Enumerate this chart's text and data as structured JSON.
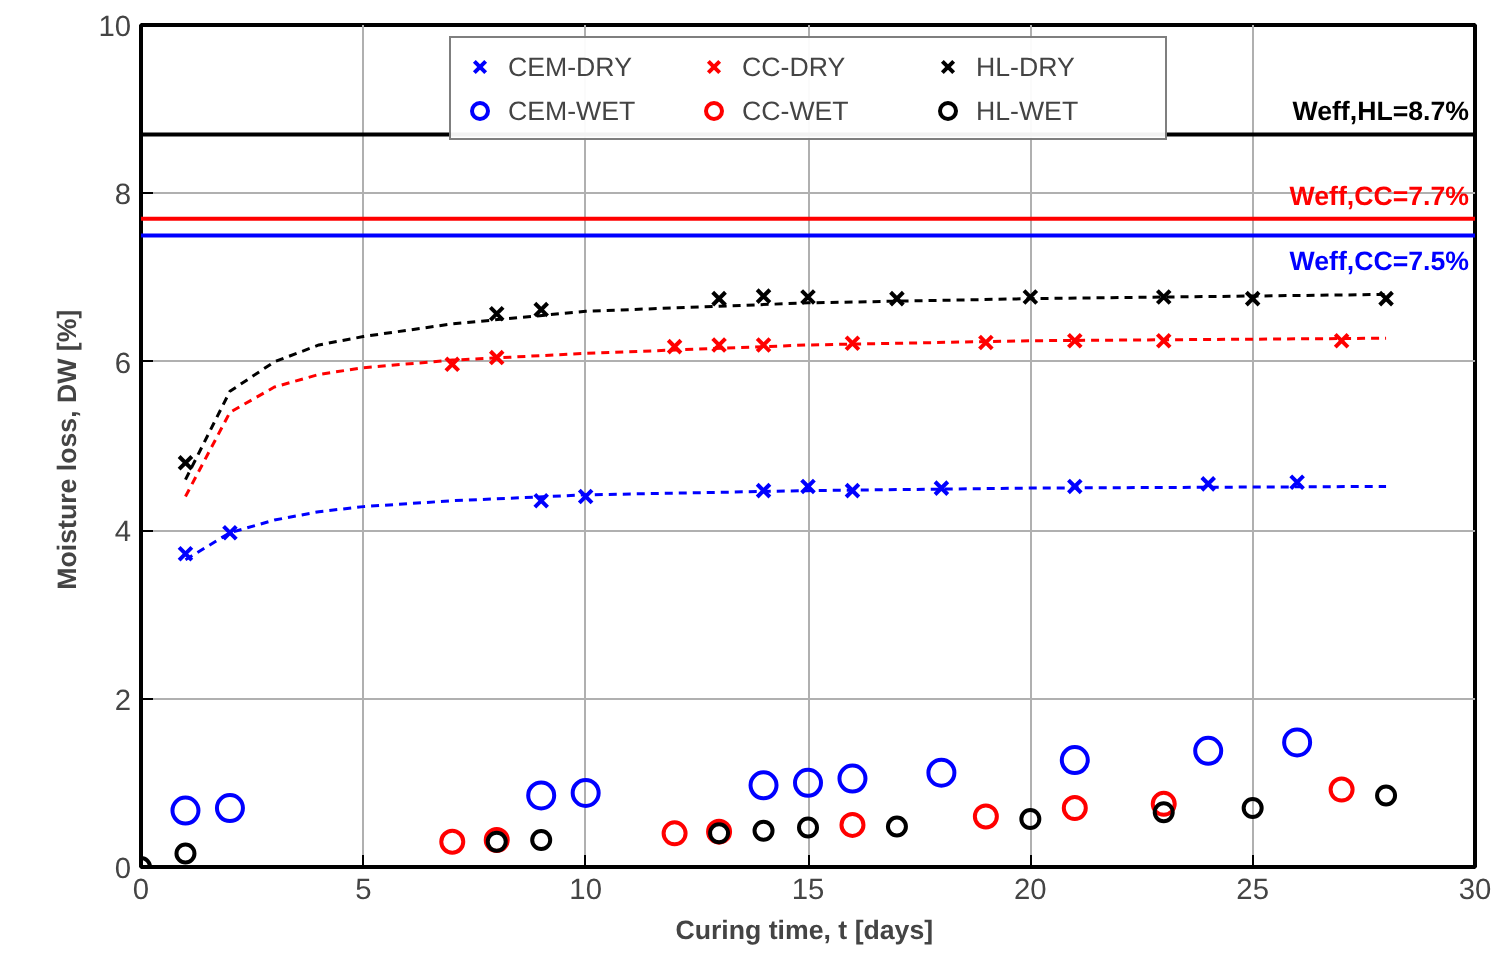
{
  "chart_data": {
    "type": "scatter",
    "xlabel": "Curing time, t  [days]",
    "ylabel": "Moisture loss, DW  [%]",
    "xlim": [
      0,
      30
    ],
    "ylim": [
      0,
      10
    ],
    "xticks": [
      0,
      5,
      10,
      15,
      20,
      25,
      30
    ],
    "yticks": [
      0,
      2,
      4,
      6,
      8,
      10
    ],
    "grid": true,
    "legend": "top",
    "series": [
      {
        "name": "CEM-DRY",
        "color": "#0000ff",
        "marker": "cross",
        "x": [
          1,
          2,
          9,
          10,
          14,
          15,
          16,
          18,
          21,
          24,
          26
        ],
        "values": [
          3.72,
          3.97,
          4.35,
          4.4,
          4.47,
          4.52,
          4.47,
          4.5,
          4.52,
          4.55,
          4.57
        ]
      },
      {
        "name": "CC-DRY",
        "color": "#ff0000",
        "marker": "cross",
        "x": [
          7,
          8,
          12,
          13,
          14,
          16,
          19,
          21,
          23,
          27
        ],
        "values": [
          5.97,
          6.05,
          6.18,
          6.2,
          6.2,
          6.22,
          6.23,
          6.25,
          6.25,
          6.25
        ]
      },
      {
        "name": "HL-DRY",
        "color": "#000000",
        "marker": "cross",
        "x": [
          1,
          8,
          9,
          13,
          14,
          15,
          17,
          20,
          23,
          25,
          28
        ],
        "values": [
          4.8,
          6.57,
          6.62,
          6.75,
          6.78,
          6.77,
          6.75,
          6.77,
          6.77,
          6.75,
          6.75
        ]
      },
      {
        "name": "CEM-WET",
        "color": "#0000ff",
        "marker": "circle",
        "x": [
          1,
          2,
          9,
          10,
          14,
          15,
          16,
          18,
          21,
          24,
          26
        ],
        "values": [
          0.67,
          0.7,
          0.85,
          0.88,
          0.97,
          1.0,
          1.05,
          1.12,
          1.27,
          1.38,
          1.48
        ]
      },
      {
        "name": "CC-WET",
        "color": "#ff0000",
        "marker": "circle",
        "x": [
          7,
          8,
          12,
          13,
          16,
          19,
          21,
          23,
          27
        ],
        "values": [
          0.3,
          0.32,
          0.4,
          0.42,
          0.5,
          0.6,
          0.7,
          0.75,
          0.92
        ]
      },
      {
        "name": "HL-WET",
        "color": "#000000",
        "marker": "circle",
        "x": [
          0,
          1,
          8,
          9,
          13,
          14,
          15,
          17,
          20,
          23,
          25,
          28
        ],
        "values": [
          0,
          0.16,
          0.3,
          0.32,
          0.4,
          0.43,
          0.47,
          0.48,
          0.57,
          0.65,
          0.7,
          0.85
        ]
      },
      {
        "type": "line",
        "line_style": "dashed",
        "color": "#0000ff",
        "x": [
          1,
          2,
          3,
          4,
          5,
          7,
          10,
          15,
          20,
          28
        ],
        "values": [
          3.65,
          3.97,
          4.12,
          4.22,
          4.28,
          4.35,
          4.42,
          4.47,
          4.5,
          4.52
        ]
      },
      {
        "type": "line",
        "line_style": "dashed",
        "color": "#ff0000",
        "x": [
          1,
          2,
          3,
          4,
          5,
          7,
          10,
          15,
          20,
          28
        ],
        "values": [
          4.4,
          5.4,
          5.7,
          5.85,
          5.93,
          6.02,
          6.1,
          6.2,
          6.25,
          6.28
        ]
      },
      {
        "type": "line",
        "line_style": "dashed",
        "color": "#000000",
        "x": [
          1,
          2,
          3,
          4,
          5,
          7,
          10,
          15,
          20,
          28
        ],
        "values": [
          4.6,
          5.65,
          6.0,
          6.2,
          6.3,
          6.45,
          6.6,
          6.7,
          6.75,
          6.8
        ]
      }
    ],
    "ref_lines": [
      {
        "axis": "y",
        "value": 8.7,
        "label": "Weff,HL=8.7%",
        "color": "#000000"
      },
      {
        "axis": "y",
        "value": 7.7,
        "label": "Weff,CC=7.7%",
        "color": "#ff0000"
      },
      {
        "axis": "y",
        "value": 7.5,
        "label": "Weff,CC=7.5%",
        "color": "#0000ff"
      }
    ]
  }
}
